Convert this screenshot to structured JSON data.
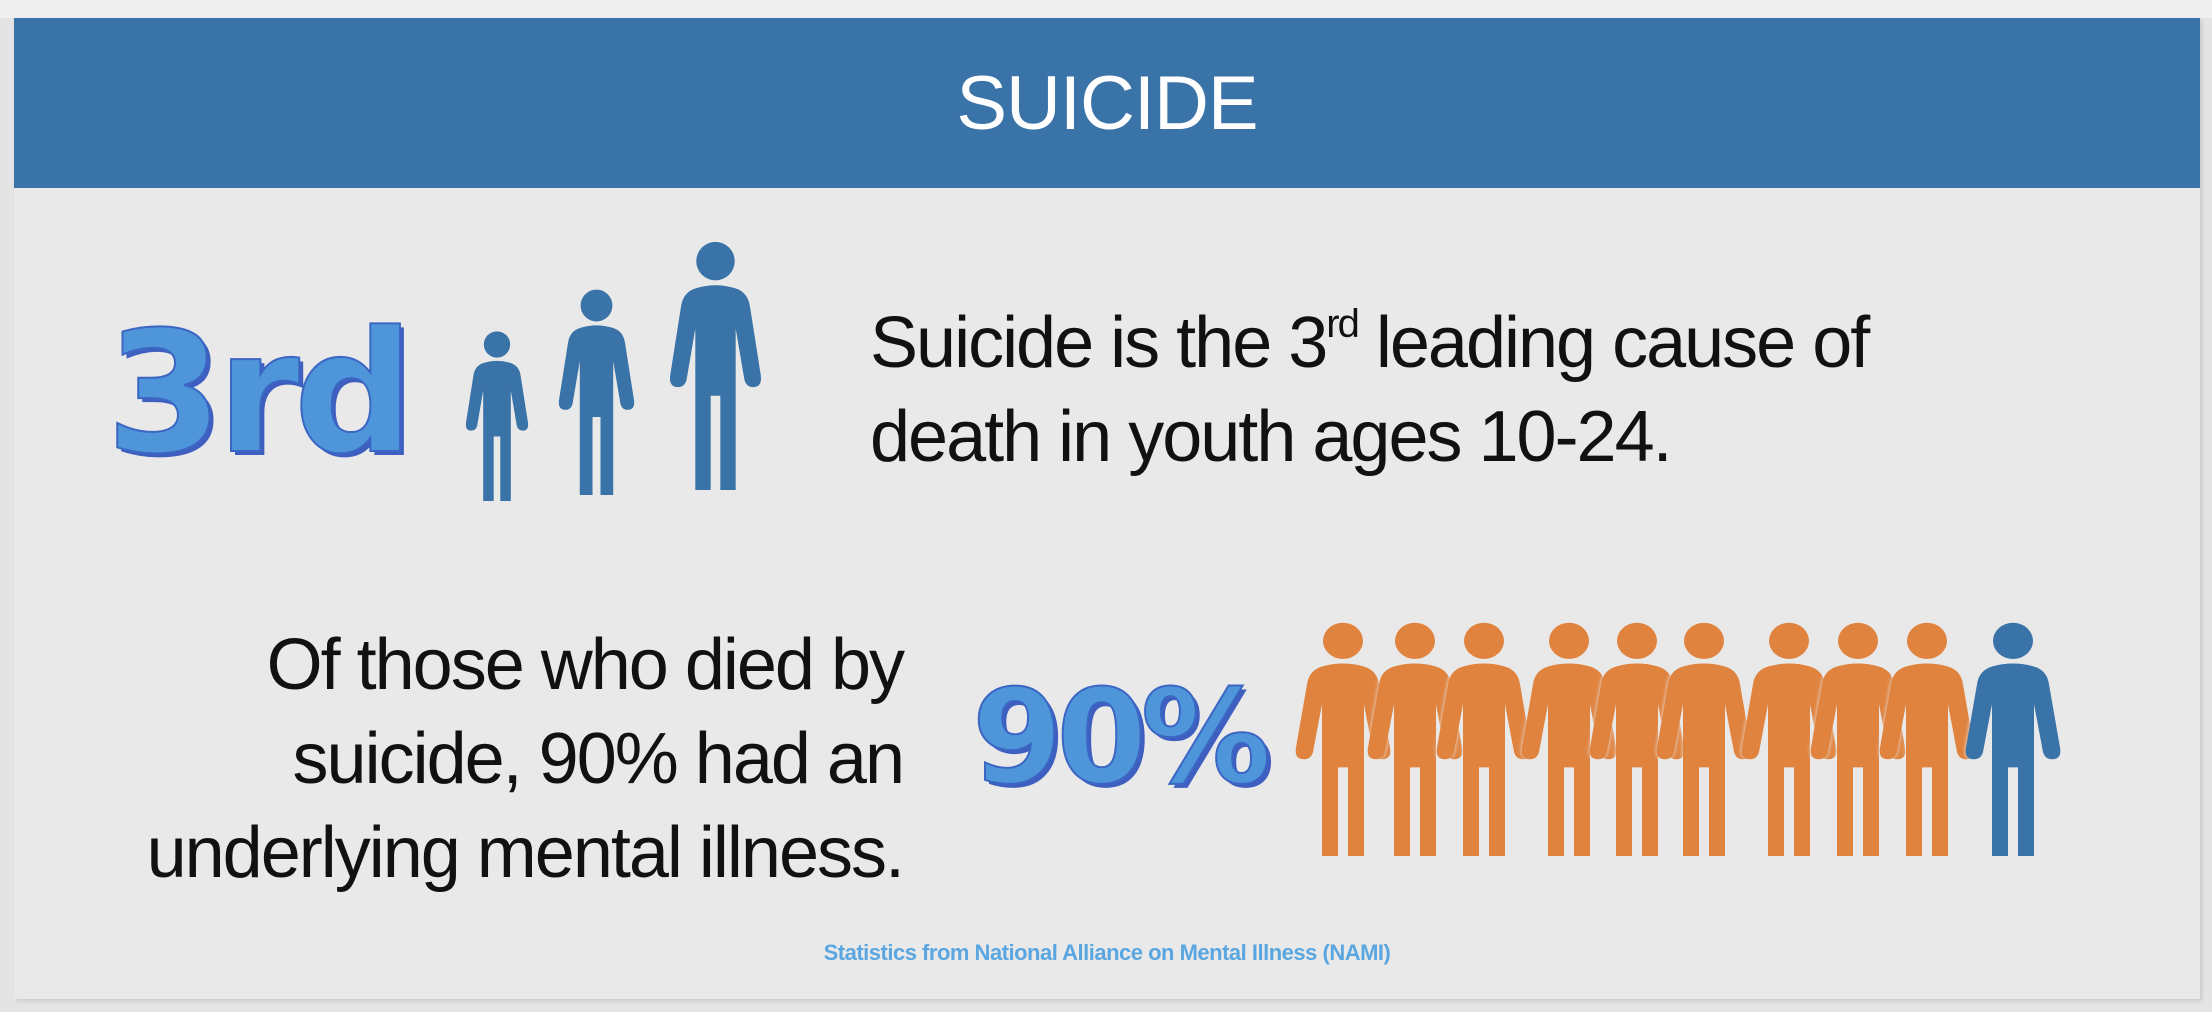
{
  "title": "SUICIDE",
  "stat1": {
    "big_label": "3rd",
    "text_pre": "Suicide is the 3",
    "text_sup": "rd",
    "text_post": " leading cause of",
    "text_line2": "death in youth ages 10-24.",
    "icon": "family-of-three-figures-icon",
    "icon_color": "#3a73a8"
  },
  "stat2": {
    "lines": [
      "Of those who died by",
      "suicide, 90% had an",
      "underlying mental illness."
    ],
    "big_label": "90%",
    "people_total": 10,
    "people_highlighted": 9,
    "highlight_color": "#e0833f",
    "other_color": "#3a73a8"
  },
  "source": "Statistics from National Alliance on Mental Illness (NAMI)",
  "colors": {
    "banner": "#3a73a8",
    "big_number": "#4e95da",
    "source_text": "#5aa6e0"
  }
}
